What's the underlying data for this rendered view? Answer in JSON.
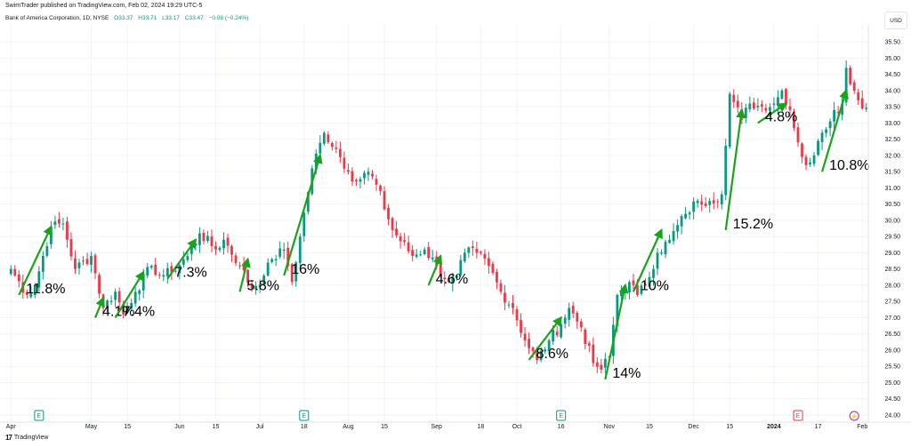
{
  "header": {
    "attribution": "SwimTrader published on TradingView.com, Feb 02, 2024 19:29 UTC-5",
    "symbol": "Bank of America Corporation, 1D, NYSE",
    "open": "O33.37",
    "high": "H33.71",
    "low": "L33.17",
    "close": "C33.47",
    "change": "−0.08 (−0.24%)"
  },
  "currency": "USD",
  "footer": {
    "brand": "TradingView"
  },
  "colors": {
    "up": "#089981",
    "down": "#f23645",
    "arrow": "#1aa31a",
    "grid": "#f0f3fa",
    "axis_text": "#131722"
  },
  "chart_data": {
    "type": "candlestick",
    "title": "",
    "ylim": [
      24.0,
      35.75
    ],
    "y_ticks": [
      "35.50",
      "35.00",
      "34.50",
      "34.00",
      "33.50",
      "33.00",
      "32.50",
      "32.00",
      "31.50",
      "31.00",
      "30.50",
      "30.00",
      "29.50",
      "29.00",
      "28.50",
      "28.00",
      "27.50",
      "27.00",
      "26.50",
      "26.00",
      "25.50",
      "25.00",
      "24.50",
      "24.00"
    ],
    "x_ticks": [
      {
        "label": "Apr",
        "bar": 0
      },
      {
        "label": "May",
        "bar": 20
      },
      {
        "label": "15",
        "bar": 29
      },
      {
        "label": "Jun",
        "bar": 42
      },
      {
        "label": "15",
        "bar": 51
      },
      {
        "label": "Jul",
        "bar": 62
      },
      {
        "label": "18",
        "bar": 73
      },
      {
        "label": "Aug",
        "bar": 84
      },
      {
        "label": "15",
        "bar": 93
      },
      {
        "label": "Sep",
        "bar": 106
      },
      {
        "label": "18",
        "bar": 117
      },
      {
        "label": "Oct",
        "bar": 126
      },
      {
        "label": "16",
        "bar": 137
      },
      {
        "label": "Nov",
        "bar": 149
      },
      {
        "label": "15",
        "bar": 159
      },
      {
        "label": "Dec",
        "bar": 170
      },
      {
        "label": "15",
        "bar": 179
      },
      {
        "label": "2024",
        "bar": 190
      },
      {
        "label": "17",
        "bar": 201
      },
      {
        "label": "Feb",
        "bar": 212
      }
    ],
    "n_bars": 214,
    "anchors": [
      [
        0,
        28.5
      ],
      [
        4,
        27.7
      ],
      [
        6,
        28.0
      ],
      [
        10,
        29.8
      ],
      [
        13,
        29.9
      ],
      [
        16,
        28.5
      ],
      [
        20,
        28.9
      ],
      [
        23,
        27.3
      ],
      [
        26,
        27.8
      ],
      [
        28,
        27.1
      ],
      [
        31,
        27.8
      ],
      [
        35,
        28.6
      ],
      [
        37,
        28.3
      ],
      [
        40,
        28.4
      ],
      [
        44,
        28.9
      ],
      [
        47,
        29.6
      ],
      [
        51,
        29.1
      ],
      [
        53,
        29.4
      ],
      [
        57,
        28.6
      ],
      [
        60,
        27.9
      ],
      [
        63,
        28.3
      ],
      [
        65,
        28.8
      ],
      [
        68,
        29.1
      ],
      [
        70,
        28.1
      ],
      [
        72,
        29.5
      ],
      [
        75,
        31.6
      ],
      [
        78,
        32.7
      ],
      [
        81,
        32.2
      ],
      [
        84,
        31.5
      ],
      [
        86,
        31.2
      ],
      [
        89,
        31.5
      ],
      [
        91,
        31.1
      ],
      [
        95,
        29.7
      ],
      [
        100,
        28.9
      ],
      [
        103,
        29.1
      ],
      [
        106,
        28.6
      ],
      [
        109,
        28.1
      ],
      [
        111,
        28.3
      ],
      [
        113,
        29.0
      ],
      [
        116,
        29.0
      ],
      [
        119,
        28.6
      ],
      [
        122,
        27.8
      ],
      [
        125,
        27.3
      ],
      [
        128,
        26.3
      ],
      [
        131,
        25.7
      ],
      [
        134,
        26.3
      ],
      [
        137,
        26.8
      ],
      [
        139,
        27.3
      ],
      [
        142,
        26.7
      ],
      [
        145,
        25.6
      ],
      [
        147,
        25.4
      ],
      [
        149,
        25.8
      ],
      [
        151,
        27.7
      ],
      [
        154,
        28.1
      ],
      [
        156,
        27.7
      ],
      [
        158,
        28.0
      ],
      [
        161,
        29.0
      ],
      [
        164,
        29.4
      ],
      [
        168,
        30.2
      ],
      [
        171,
        30.6
      ],
      [
        174,
        30.6
      ],
      [
        177,
        30.8
      ],
      [
        178,
        32.3
      ],
      [
        179,
        33.9
      ],
      [
        182,
        33.1
      ],
      [
        184,
        33.6
      ],
      [
        187,
        33.5
      ],
      [
        190,
        33.6
      ],
      [
        192,
        34.0
      ],
      [
        194,
        33.4
      ],
      [
        196,
        32.4
      ],
      [
        198,
        31.7
      ],
      [
        200,
        32.0
      ],
      [
        202,
        32.7
      ],
      [
        205,
        33.4
      ],
      [
        207,
        33.6
      ],
      [
        208,
        34.7
      ],
      [
        209,
        34.2
      ],
      [
        211,
        33.7
      ],
      [
        213,
        33.47
      ]
    ],
    "annotations": [
      {
        "label": "11.8%",
        "from": [
          2,
          27.7
        ],
        "to": [
          10,
          29.8
        ]
      },
      {
        "label": "4.1%",
        "from": [
          21,
          27.0
        ],
        "to": [
          23,
          27.6
        ]
      },
      {
        "label": "7.4%",
        "from": [
          26,
          27.0
        ],
        "to": [
          33,
          28.4
        ]
      },
      {
        "label": "7.3%",
        "from": [
          39,
          28.2
        ],
        "to": [
          46,
          29.4
        ]
      },
      {
        "label": "5.8%",
        "from": [
          57,
          27.8
        ],
        "to": [
          59,
          28.8
        ]
      },
      {
        "label": "16%",
        "from": [
          68,
          28.3
        ],
        "to": [
          77,
          32.0
        ]
      },
      {
        "label": "4.6%",
        "from": [
          104,
          28.0
        ],
        "to": [
          107,
          28.9
        ]
      },
      {
        "label": "8.6%",
        "from": [
          129,
          25.7
        ],
        "to": [
          137,
          27.0
        ]
      },
      {
        "label": "14%",
        "from": [
          148,
          25.1
        ],
        "to": [
          153,
          28.0
        ]
      },
      {
        "label": "10%",
        "from": [
          155,
          27.8
        ],
        "to": [
          162,
          29.7
        ]
      },
      {
        "label": "15.2%",
        "from": [
          178,
          29.7
        ],
        "to": [
          182,
          33.4
        ]
      },
      {
        "label": "4.8%",
        "from": [
          186,
          33.0
        ],
        "to": [
          193,
          33.6
        ]
      },
      {
        "label": "10.8%",
        "from": [
          202,
          31.5
        ],
        "to": [
          208,
          34.0
        ]
      }
    ],
    "events": [
      {
        "type": "earnings",
        "label": "E",
        "bar": 7
      },
      {
        "type": "earnings",
        "label": "E",
        "bar": 73
      },
      {
        "type": "earnings",
        "label": "E",
        "bar": 137
      },
      {
        "type": "earnings-red",
        "label": "E",
        "bar": 196
      },
      {
        "type": "split-flash",
        "label": "⚡",
        "bar": 210
      }
    ]
  }
}
